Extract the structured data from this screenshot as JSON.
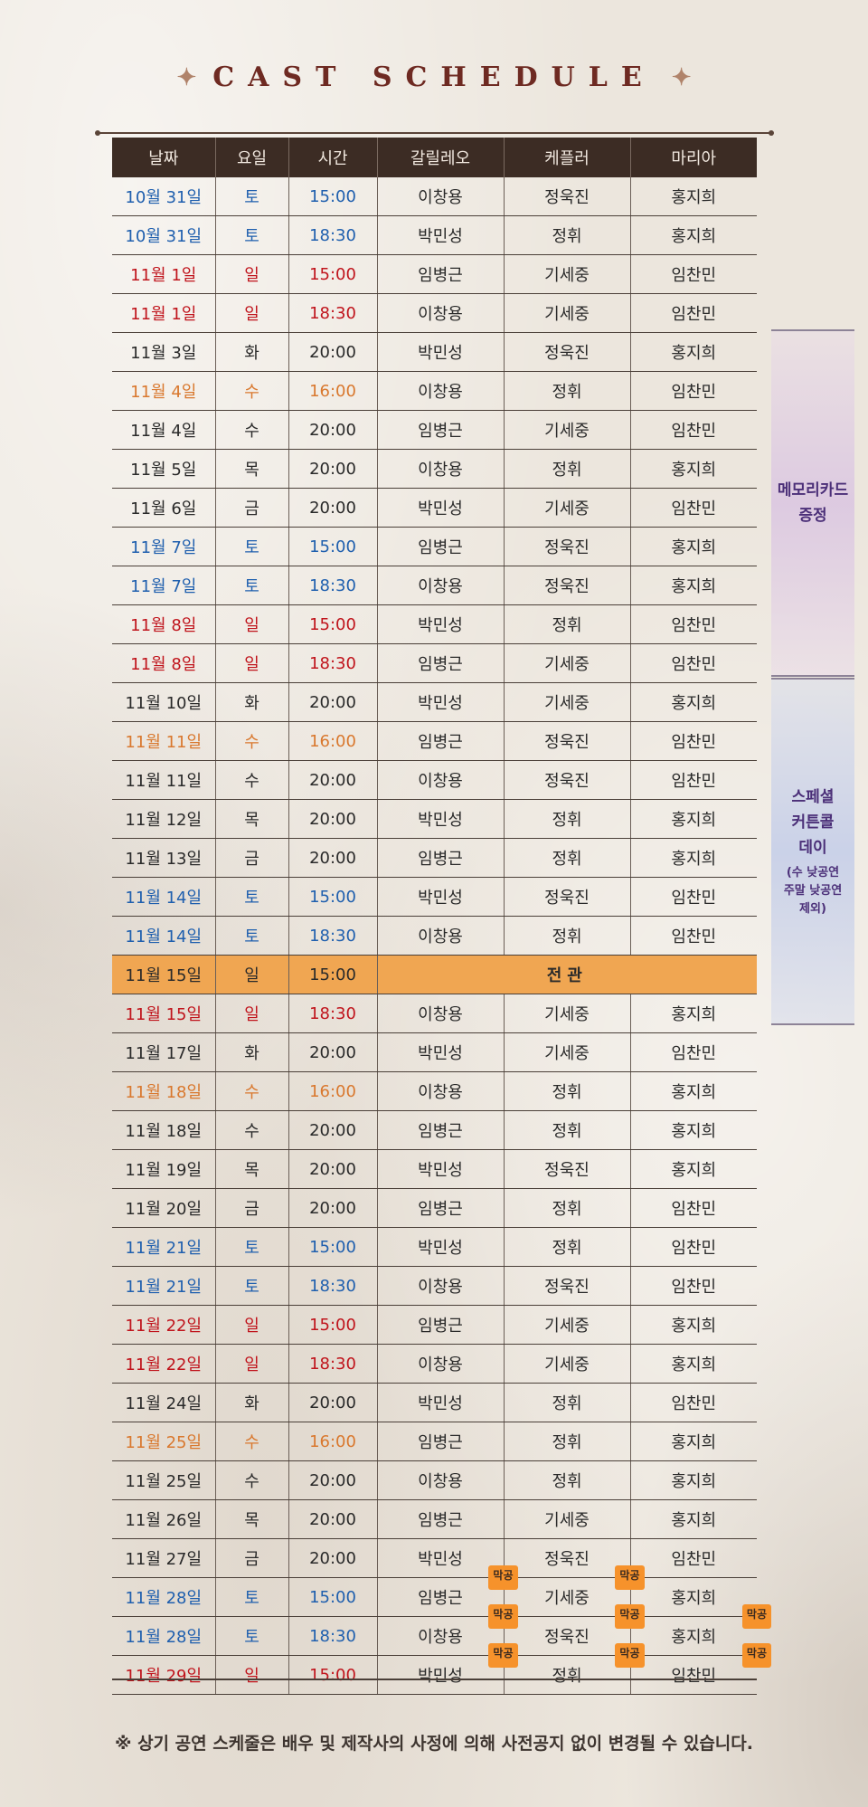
{
  "title": "CAST SCHEDULE",
  "title_ornament": "✦",
  "headers": [
    "날짜",
    "요일",
    "시간",
    "갈릴레오",
    "케플러",
    "마리아"
  ],
  "rows": [
    {
      "date": "10월 31일",
      "day": "토",
      "time": "15:00",
      "galileo": "이창용",
      "kepler": "정욱진",
      "maria": "홍지희",
      "type": "sat"
    },
    {
      "date": "10월 31일",
      "day": "토",
      "time": "18:30",
      "galileo": "박민성",
      "kepler": "정휘",
      "maria": "홍지희",
      "type": "sat"
    },
    {
      "date": "11월 1일",
      "day": "일",
      "time": "15:00",
      "galileo": "임병근",
      "kepler": "기세중",
      "maria": "임찬민",
      "type": "sun"
    },
    {
      "date": "11월 1일",
      "day": "일",
      "time": "18:30",
      "galileo": "이창용",
      "kepler": "기세중",
      "maria": "임찬민",
      "type": "sun"
    },
    {
      "date": "11월 3일",
      "day": "화",
      "time": "20:00",
      "galileo": "박민성",
      "kepler": "정욱진",
      "maria": "홍지희",
      "type": "weekday"
    },
    {
      "date": "11월 4일",
      "day": "수",
      "time": "16:00",
      "galileo": "이창용",
      "kepler": "정휘",
      "maria": "임찬민",
      "type": "matinee"
    },
    {
      "date": "11월 4일",
      "day": "수",
      "time": "20:00",
      "galileo": "임병근",
      "kepler": "기세중",
      "maria": "임찬민",
      "type": "weekday"
    },
    {
      "date": "11월 5일",
      "day": "목",
      "time": "20:00",
      "galileo": "이창용",
      "kepler": "정휘",
      "maria": "홍지희",
      "type": "weekday"
    },
    {
      "date": "11월 6일",
      "day": "금",
      "time": "20:00",
      "galileo": "박민성",
      "kepler": "기세중",
      "maria": "임찬민",
      "type": "weekday"
    },
    {
      "date": "11월 7일",
      "day": "토",
      "time": "15:00",
      "galileo": "임병근",
      "kepler": "정욱진",
      "maria": "홍지희",
      "type": "sat"
    },
    {
      "date": "11월 7일",
      "day": "토",
      "time": "18:30",
      "galileo": "이창용",
      "kepler": "정욱진",
      "maria": "홍지희",
      "type": "sat"
    },
    {
      "date": "11월 8일",
      "day": "일",
      "time": "15:00",
      "galileo": "박민성",
      "kepler": "정휘",
      "maria": "임찬민",
      "type": "sun"
    },
    {
      "date": "11월 8일",
      "day": "일",
      "time": "18:30",
      "galileo": "임병근",
      "kepler": "기세중",
      "maria": "임찬민",
      "type": "sun"
    },
    {
      "date": "11월 10일",
      "day": "화",
      "time": "20:00",
      "galileo": "박민성",
      "kepler": "기세중",
      "maria": "홍지희",
      "type": "weekday"
    },
    {
      "date": "11월 11일",
      "day": "수",
      "time": "16:00",
      "galileo": "임병근",
      "kepler": "정욱진",
      "maria": "임찬민",
      "type": "matinee"
    },
    {
      "date": "11월 11일",
      "day": "수",
      "time": "20:00",
      "galileo": "이창용",
      "kepler": "정욱진",
      "maria": "임찬민",
      "type": "weekday"
    },
    {
      "date": "11월 12일",
      "day": "목",
      "time": "20:00",
      "galileo": "박민성",
      "kepler": "정휘",
      "maria": "홍지희",
      "type": "weekday"
    },
    {
      "date": "11월 13일",
      "day": "금",
      "time": "20:00",
      "galileo": "임병근",
      "kepler": "정휘",
      "maria": "홍지희",
      "type": "weekday"
    },
    {
      "date": "11월 14일",
      "day": "토",
      "time": "15:00",
      "galileo": "박민성",
      "kepler": "정욱진",
      "maria": "임찬민",
      "type": "sat"
    },
    {
      "date": "11월 14일",
      "day": "토",
      "time": "18:30",
      "galileo": "이창용",
      "kepler": "정휘",
      "maria": "임찬민",
      "type": "sat"
    },
    {
      "date": "11월 15일",
      "day": "일",
      "time": "15:00",
      "full": "전관",
      "type": "highlight"
    },
    {
      "date": "11월 15일",
      "day": "일",
      "time": "18:30",
      "galileo": "이창용",
      "kepler": "기세중",
      "maria": "홍지희",
      "type": "sun"
    },
    {
      "date": "11월 17일",
      "day": "화",
      "time": "20:00",
      "galileo": "박민성",
      "kepler": "기세중",
      "maria": "임찬민",
      "type": "weekday"
    },
    {
      "date": "11월 18일",
      "day": "수",
      "time": "16:00",
      "galileo": "이창용",
      "kepler": "정휘",
      "maria": "홍지희",
      "type": "matinee"
    },
    {
      "date": "11월 18일",
      "day": "수",
      "time": "20:00",
      "galileo": "임병근",
      "kepler": "정휘",
      "maria": "홍지희",
      "type": "weekday"
    },
    {
      "date": "11월 19일",
      "day": "목",
      "time": "20:00",
      "galileo": "박민성",
      "kepler": "정욱진",
      "maria": "홍지희",
      "type": "weekday"
    },
    {
      "date": "11월 20일",
      "day": "금",
      "time": "20:00",
      "galileo": "임병근",
      "kepler": "정휘",
      "maria": "임찬민",
      "type": "weekday"
    },
    {
      "date": "11월 21일",
      "day": "토",
      "time": "15:00",
      "galileo": "박민성",
      "kepler": "정휘",
      "maria": "임찬민",
      "type": "sat"
    },
    {
      "date": "11월 21일",
      "day": "토",
      "time": "18:30",
      "galileo": "이창용",
      "kepler": "정욱진",
      "maria": "임찬민",
      "type": "sat"
    },
    {
      "date": "11월 22일",
      "day": "일",
      "time": "15:00",
      "galileo": "임병근",
      "kepler": "기세중",
      "maria": "홍지희",
      "type": "sun"
    },
    {
      "date": "11월 22일",
      "day": "일",
      "time": "18:30",
      "galileo": "이창용",
      "kepler": "기세중",
      "maria": "홍지희",
      "type": "sun"
    },
    {
      "date": "11월 24일",
      "day": "화",
      "time": "20:00",
      "galileo": "박민성",
      "kepler": "정휘",
      "maria": "임찬민",
      "type": "weekday"
    },
    {
      "date": "11월 25일",
      "day": "수",
      "time": "16:00",
      "galileo": "임병근",
      "kepler": "정휘",
      "maria": "홍지희",
      "type": "matinee"
    },
    {
      "date": "11월 25일",
      "day": "수",
      "time": "20:00",
      "galileo": "이창용",
      "kepler": "정휘",
      "maria": "홍지희",
      "type": "weekday"
    },
    {
      "date": "11월 26일",
      "day": "목",
      "time": "20:00",
      "galileo": "임병근",
      "kepler": "기세중",
      "maria": "홍지희",
      "type": "weekday"
    },
    {
      "date": "11월 27일",
      "day": "금",
      "time": "20:00",
      "galileo": "박민성",
      "kepler": "정욱진",
      "maria": "임찬민",
      "type": "weekday"
    },
    {
      "date": "11월 28일",
      "day": "토",
      "time": "15:00",
      "galileo": "임병근",
      "kepler": "기세중",
      "maria": "홍지희",
      "type": "sat",
      "badges": [
        "galileo",
        "kepler"
      ]
    },
    {
      "date": "11월 28일",
      "day": "토",
      "time": "18:30",
      "galileo": "이창용",
      "kepler": "정욱진",
      "maria": "홍지희",
      "type": "sat",
      "badges": [
        "galileo",
        "kepler",
        "maria"
      ]
    },
    {
      "date": "11월 29일",
      "day": "일",
      "time": "15:00",
      "galileo": "박민성",
      "kepler": "정휘",
      "maria": "임찬민",
      "type": "sun",
      "badges": [
        "galileo",
        "kepler",
        "maria"
      ]
    }
  ],
  "badge_label": "막공",
  "side_boxes": {
    "memory_card": {
      "line1": "메모리카드",
      "line2": "증정"
    },
    "special": {
      "line1": "스페셜",
      "line2": "커튼콜",
      "line3": "데이",
      "sub1": "(수 낮공연",
      "sub2": "주말 낮공연",
      "sub3": "제외)"
    }
  },
  "notice": "※ 상기 공연 스케줄은 배우 및 제작사의 사정에 의해 사전공지 없이 변경될 수 있습니다.",
  "colors": {
    "saturday": "#1f5fae",
    "sunday": "#c0141c",
    "matinee": "#d9782e",
    "highlight": "#f0a652",
    "header_bg": "#3c2c24",
    "badge": "#f6922b"
  }
}
